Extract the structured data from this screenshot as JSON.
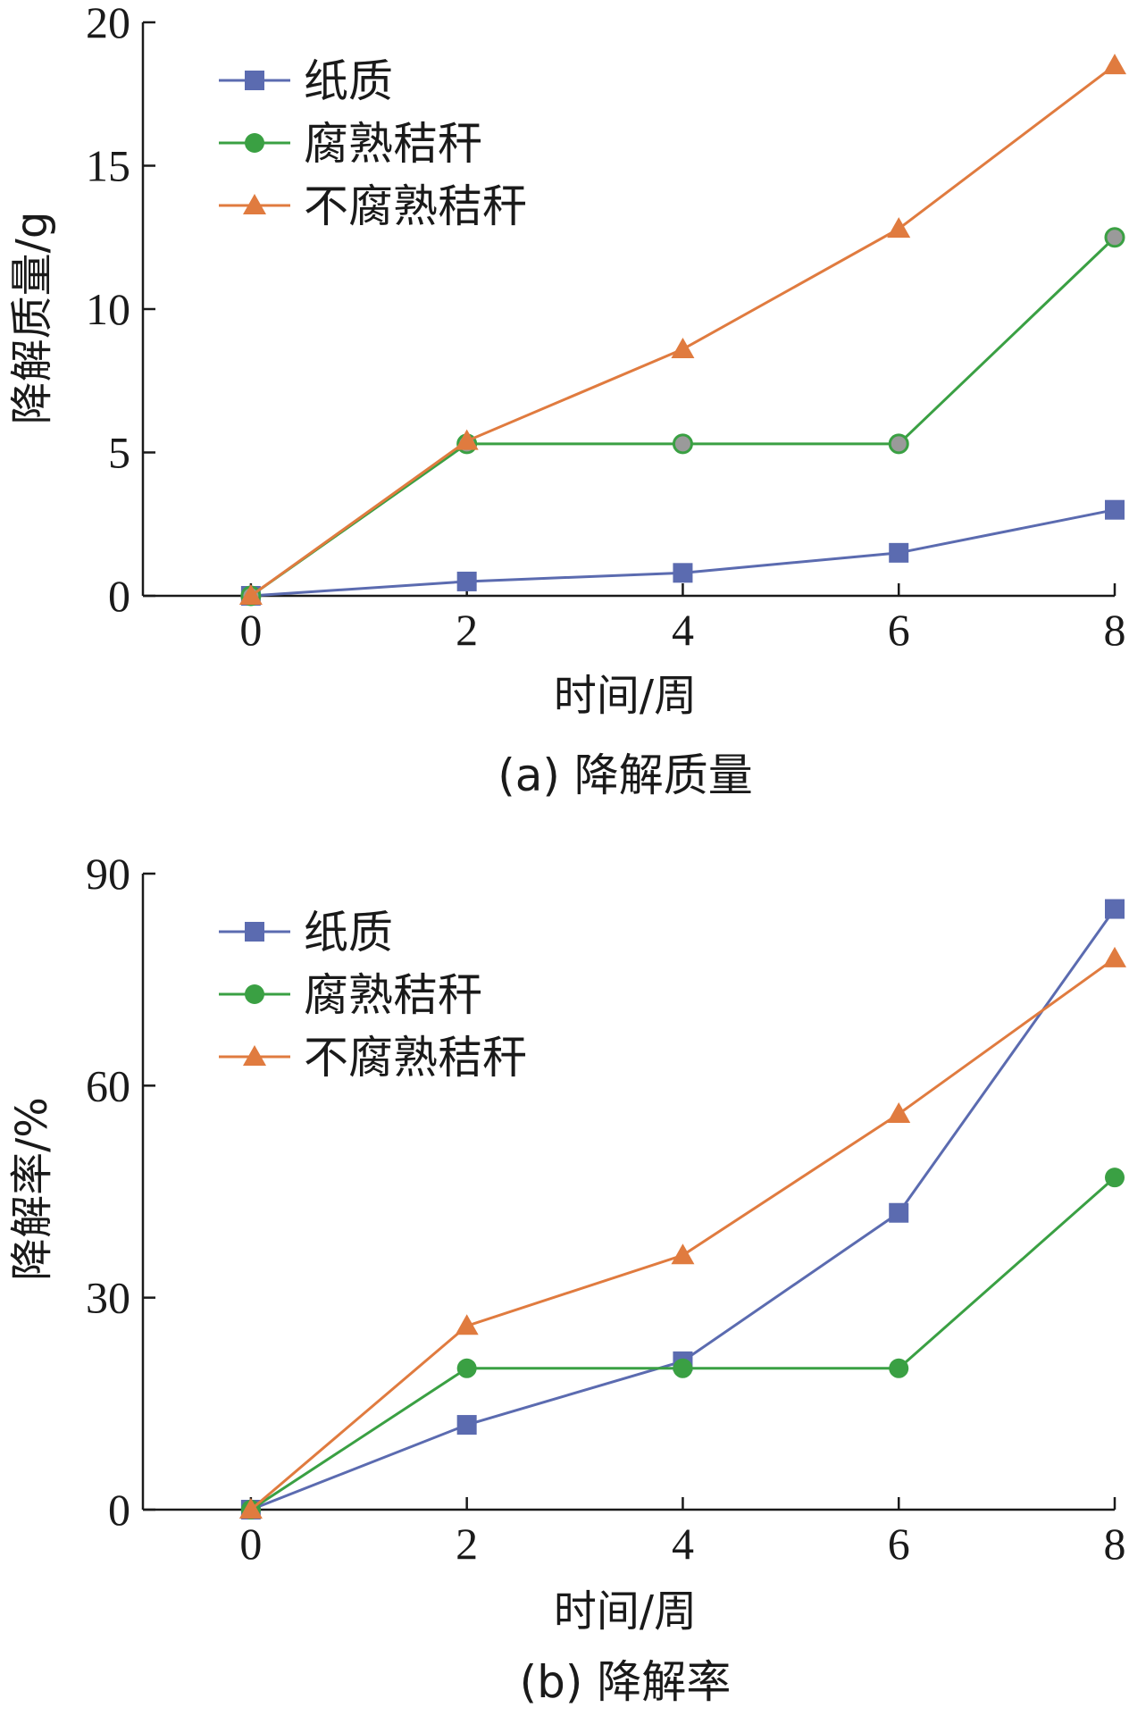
{
  "chart_data": [
    {
      "type": "line",
      "caption": "(a) 降解质量",
      "xlabel": "时间/周",
      "ylabel": "降解质量/g",
      "x": [
        0,
        2,
        4,
        6,
        8
      ],
      "xticks": [
        "0",
        "2",
        "4",
        "6",
        "8"
      ],
      "yticks": [
        "0",
        "5",
        "10",
        "15",
        "20"
      ],
      "xlim": [
        -1,
        8
      ],
      "ylim": [
        0,
        20
      ],
      "legend_position": "top-left",
      "series": [
        {
          "name": "纸质",
          "marker": "square",
          "color": "#5b6bb0",
          "values": [
            0,
            0.5,
            0.8,
            1.5,
            3.0
          ]
        },
        {
          "name": "腐熟秸秆",
          "marker": "circle",
          "color": "#3aa043",
          "values": [
            0,
            5.3,
            5.3,
            5.3,
            12.5
          ]
        },
        {
          "name": "不腐熟秸秆",
          "marker": "triangle",
          "color": "#e07b3f",
          "values": [
            0,
            5.4,
            8.6,
            12.8,
            18.5
          ]
        }
      ]
    },
    {
      "type": "line",
      "caption": "(b) 降解率",
      "xlabel": "时间/周",
      "ylabel": "降解率/%",
      "x": [
        0,
        2,
        4,
        6,
        8
      ],
      "xticks": [
        "0",
        "2",
        "4",
        "6",
        "8"
      ],
      "yticks": [
        "0",
        "30",
        "60",
        "90"
      ],
      "xlim": [
        -1,
        8
      ],
      "ylim": [
        0,
        90
      ],
      "legend_position": "top-left",
      "series": [
        {
          "name": "纸质",
          "marker": "square",
          "color": "#5b6bb0",
          "values": [
            0,
            12,
            21,
            42,
            85
          ]
        },
        {
          "name": "腐熟秸秆",
          "marker": "circle",
          "color": "#3aa043",
          "values": [
            0,
            20,
            20,
            20,
            47
          ]
        },
        {
          "name": "不腐熟秸秆",
          "marker": "triangle",
          "color": "#e07b3f",
          "values": [
            0,
            26,
            36,
            56,
            78
          ]
        }
      ]
    }
  ]
}
